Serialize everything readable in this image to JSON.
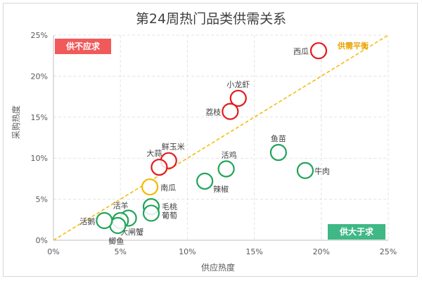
{
  "chart_data": {
    "type": "scatter",
    "title": "第24周热门品类供需关系",
    "xlabel": "供应热度",
    "ylabel": "采购热度",
    "xlim": [
      0,
      25
    ],
    "ylim": [
      0,
      25
    ],
    "x_ticks": [
      "0%",
      "5%",
      "10%",
      "15%",
      "20%",
      "25%"
    ],
    "y_ticks": [
      "0%",
      "5%",
      "10%",
      "15%",
      "20%",
      "25%"
    ],
    "reference_line": {
      "label": "供需平衡",
      "from": [
        0,
        0
      ],
      "to": [
        25,
        25
      ],
      "color": "#f5b800"
    },
    "zones": {
      "top_left": "供不应求",
      "bottom_right": "供大于求"
    },
    "colors": {
      "shortage": "#e31a1c",
      "balance": "#f5b800",
      "surplus": "#22a35b"
    },
    "points": [
      {
        "label": "西瓜",
        "x": 19.8,
        "y": 23.1,
        "status": "shortage"
      },
      {
        "label": "小龙虾",
        "x": 13.8,
        "y": 17.3,
        "status": "shortage"
      },
      {
        "label": "荔枝",
        "x": 13.2,
        "y": 15.7,
        "status": "shortage"
      },
      {
        "label": "鲜玉米",
        "x": 8.6,
        "y": 9.7,
        "status": "shortage"
      },
      {
        "label": "大蒜",
        "x": 7.9,
        "y": 8.9,
        "status": "shortage"
      },
      {
        "label": "南瓜",
        "x": 7.2,
        "y": 6.5,
        "status": "balance"
      },
      {
        "label": "鱼苗",
        "x": 16.8,
        "y": 10.7,
        "status": "surplus"
      },
      {
        "label": "牛肉",
        "x": 18.8,
        "y": 8.5,
        "status": "surplus"
      },
      {
        "label": "活鸡",
        "x": 12.9,
        "y": 8.7,
        "status": "surplus"
      },
      {
        "label": "辣椒",
        "x": 11.3,
        "y": 7.2,
        "status": "surplus"
      },
      {
        "label": "毛桃",
        "x": 7.3,
        "y": 4.1,
        "status": "surplus"
      },
      {
        "label": "葡萄",
        "x": 7.3,
        "y": 3.3,
        "status": "surplus"
      },
      {
        "label": "活羊",
        "x": 5.6,
        "y": 2.7,
        "status": "surplus"
      },
      {
        "label": "大闸蟹",
        "x": 5.0,
        "y": 2.4,
        "status": "surplus"
      },
      {
        "label": "鲫鱼",
        "x": 4.8,
        "y": 1.8,
        "status": "surplus"
      },
      {
        "label": "活鹅",
        "x": 3.8,
        "y": 2.4,
        "status": "surplus"
      }
    ]
  }
}
